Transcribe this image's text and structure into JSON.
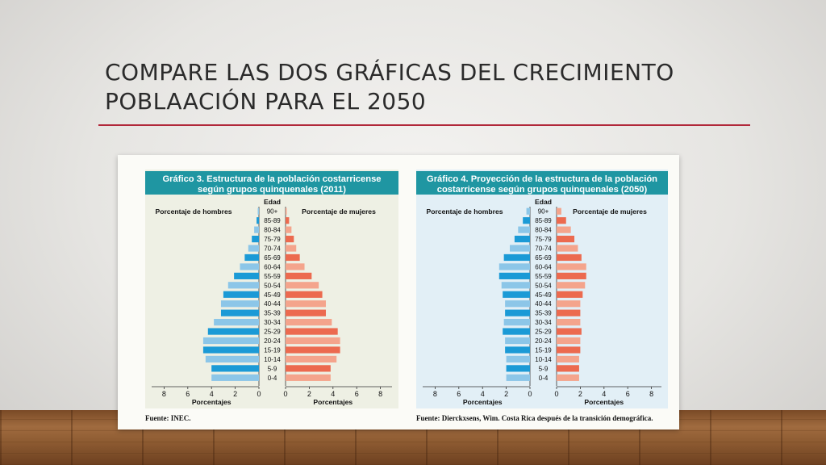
{
  "slide": {
    "title_line1": "COMPARE LAS DOS GRÁFICAS DEL CRECIMIENTO",
    "title_line2": "POBLAACIÓN PARA EL 2050",
    "accent_color": "#b1283a"
  },
  "chart_data": [
    {
      "type": "bar",
      "subtype": "population-pyramid",
      "title": "Gráfico 3.  Estructura de la población costarricense según grupos quinquenales  (2011)",
      "title_lines": [
        "Gráfico 3.  Estructura de la población costarricense",
        "según grupos quinquenales  (2011)"
      ],
      "age_axis_label": "Edad",
      "left_label": "Porcentaje de hombres",
      "right_label": "Porcentaje de mujeres",
      "xlabel": "Porcentajes",
      "xticks": [
        8,
        6,
        4,
        2,
        0
      ],
      "xlim": [
        0,
        8
      ],
      "source": "Fuente: INEC.",
      "panel_color": "#eef0e4",
      "header_color": "#1f96a2",
      "colors": {
        "men_dark": "#1b9ad6",
        "men_light": "#8cc6e8",
        "women_dark": "#ec6a4f",
        "women_light": "#f4a48c"
      },
      "categories": [
        "0-4",
        "5-9",
        "10-14",
        "15-19",
        "20-24",
        "25-29",
        "30-34",
        "35-39",
        "40-44",
        "45-49",
        "50-54",
        "55-59",
        "60-64",
        "65-69",
        "70-74",
        "75-79",
        "80-84",
        "85-89",
        "90+"
      ],
      "series": [
        {
          "name": "Porcentaje de hombres",
          "values": [
            4.0,
            4.0,
            4.5,
            4.7,
            4.7,
            4.3,
            3.8,
            3.2,
            3.2,
            3.0,
            2.6,
            2.1,
            1.6,
            1.2,
            0.9,
            0.6,
            0.4,
            0.2,
            0.1
          ]
        },
        {
          "name": "Porcentaje de mujeres",
          "values": [
            3.8,
            3.8,
            4.3,
            4.6,
            4.6,
            4.4,
            3.9,
            3.4,
            3.4,
            3.1,
            2.8,
            2.2,
            1.6,
            1.2,
            0.9,
            0.7,
            0.5,
            0.3,
            0.1
          ]
        }
      ]
    },
    {
      "type": "bar",
      "subtype": "population-pyramid",
      "title": "Gráfico 4.  Proyección de la estructura de la población costarricense según grupos quinquenales (2050)",
      "title_lines": [
        "Gráfico 4.  Proyección de la estructura de la población",
        "costarricense según grupos quinquenales (2050)"
      ],
      "age_axis_label": "Edad",
      "left_label": "Porcentaje de hombres",
      "right_label": "Porcentaje de mujeres",
      "xlabel": "Porcentajes",
      "xticks": [
        8,
        6,
        4,
        2,
        0
      ],
      "xlim": [
        0,
        8
      ],
      "source": "Fuente: Dierckxsens, Wim. Costa Rica después de la transición demográfica.",
      "panel_color": "#e2eff6",
      "header_color": "#1f96a2",
      "colors": {
        "men_dark": "#1b9ad6",
        "men_light": "#8cc6e8",
        "women_dark": "#ec6a4f",
        "women_light": "#f4a48c"
      },
      "categories": [
        "0-4",
        "5-9",
        "10-14",
        "15-19",
        "20-24",
        "25-29",
        "30-34",
        "35-39",
        "40-44",
        "45-49",
        "50-54",
        "55-59",
        "60-64",
        "65-69",
        "70-74",
        "75-79",
        "80-84",
        "85-89",
        "90+"
      ],
      "series": [
        {
          "name": "Porcentaje de hombres",
          "values": [
            2.0,
            2.0,
            2.0,
            2.1,
            2.1,
            2.3,
            2.2,
            2.1,
            2.1,
            2.3,
            2.4,
            2.6,
            2.6,
            2.2,
            1.7,
            1.3,
            1.0,
            0.6,
            0.3
          ]
        },
        {
          "name": "Porcentaje de mujeres",
          "values": [
            1.9,
            1.9,
            1.9,
            2.0,
            2.0,
            2.1,
            2.0,
            2.0,
            2.0,
            2.2,
            2.4,
            2.5,
            2.5,
            2.1,
            1.8,
            1.5,
            1.2,
            0.8,
            0.4
          ]
        }
      ]
    }
  ]
}
